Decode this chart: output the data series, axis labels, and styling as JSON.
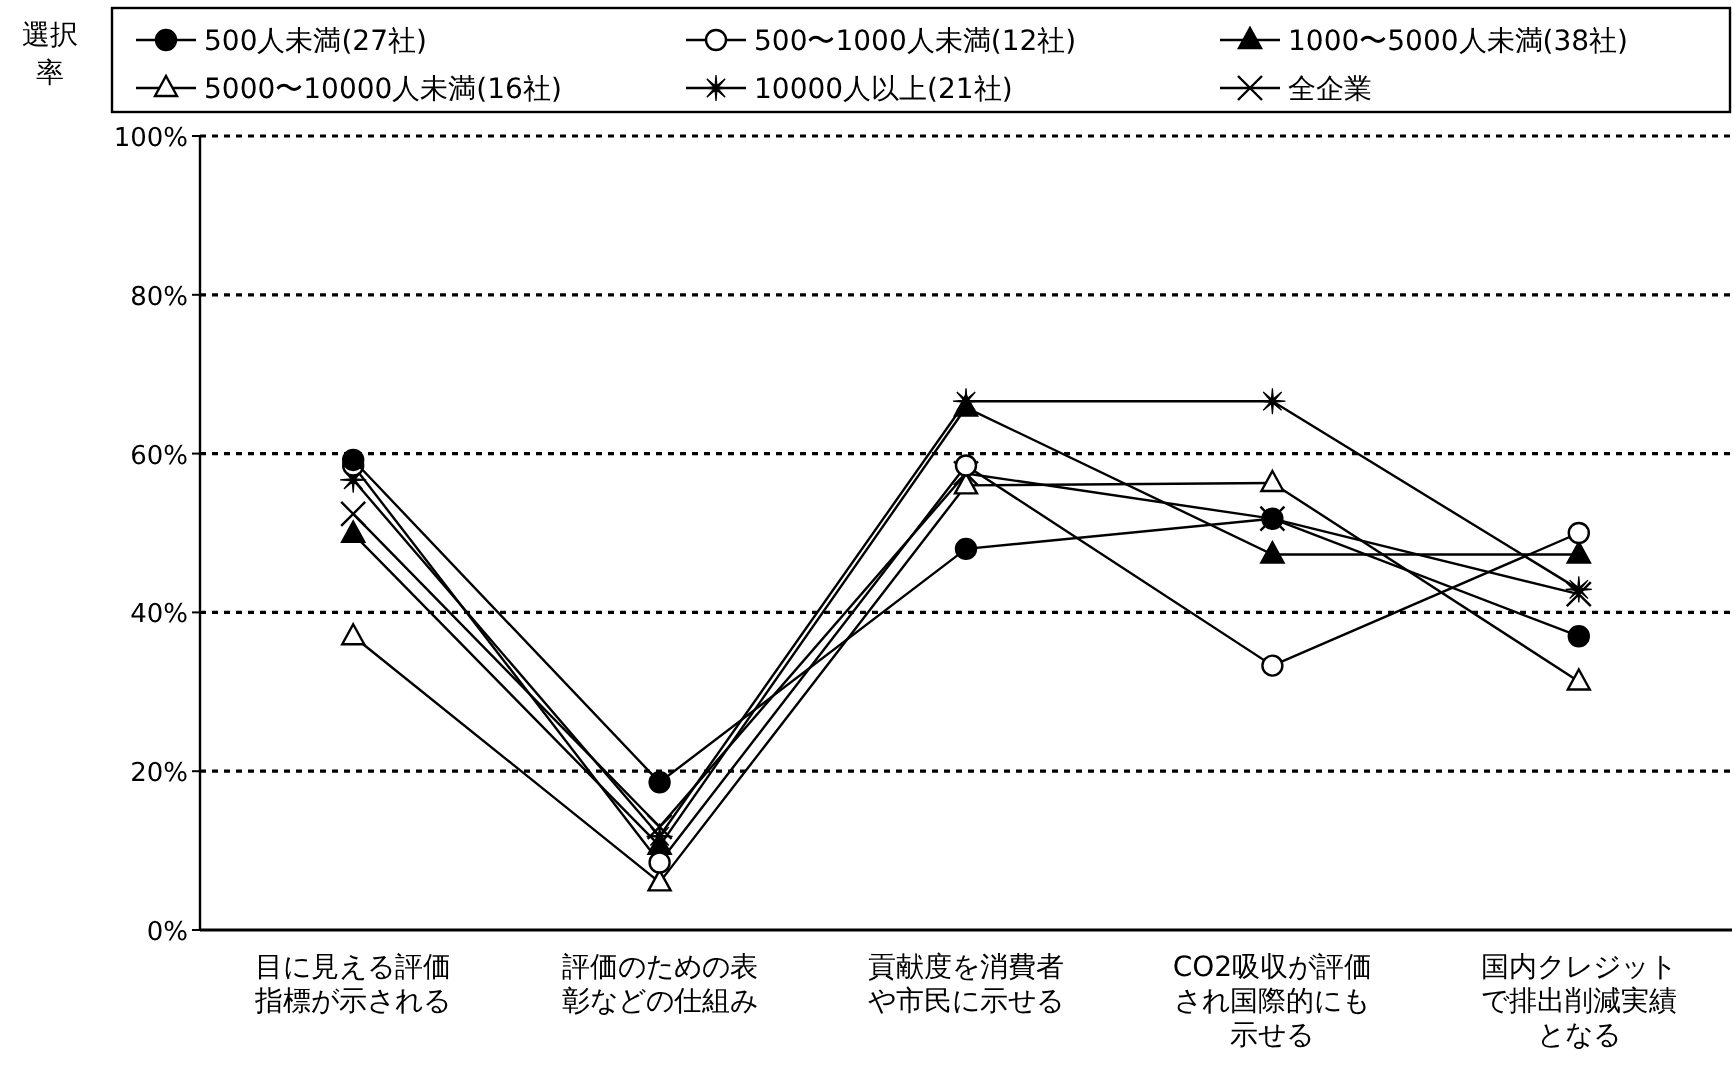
{
  "chart_data": {
    "type": "line",
    "ylabel": "選択率",
    "categories": [
      "目に見える評価指標が示される",
      "評価のための表彰などの仕組み",
      "貢献度を消費者や市民に示せる",
      "CO2吸収が評価され国際的にも示せる",
      "国内クレジットで排出削減実績となる"
    ],
    "series": [
      {
        "name": "500人未満(27社)",
        "color": "#000000",
        "marker": "circle",
        "values": [
          59.2,
          18.6,
          48,
          51.8,
          37
        ]
      },
      {
        "name": "500〜1000人未満(12社)",
        "color": "#000000",
        "marker": "circle",
        "colors": [
          "#ffffff",
          "#ffffff",
          "#ffffff",
          "#ffffff",
          "#ffffff"
        ],
        "values": [
          58.5,
          8.5,
          58.5,
          33.3,
          50
        ]
      },
      {
        "name": "1000〜5000人未満(38社)",
        "color": "#000000",
        "marker": "triangle",
        "values": [
          49.9,
          10.6,
          65.8,
          47.3,
          47.3
        ]
      },
      {
        "name": "5000〜10000人未満(16社)",
        "color": "#000000",
        "marker": "triangle",
        "colors": [
          "#ffffff",
          "#ffffff",
          "#ffffff",
          "#ffffff",
          "#ffffff"
        ],
        "values": [
          37,
          6,
          56,
          56.3,
          31.3
        ]
      },
      {
        "name": "10000人以上(21社)",
        "color": "#000000",
        "marker": "star",
        "values": [
          56.7,
          11.8,
          66.6,
          66.6,
          42.9
        ]
      },
      {
        "name": "全企業",
        "color": "#000000",
        "marker": "cross",
        "values": [
          52.4,
          13,
          57.5,
          51.8,
          42.3
        ]
      }
    ],
    "ylim": [
      0,
      100
    ],
    "yticks": [
      {
        "value": 0,
        "label": "0%"
      },
      {
        "value": 20,
        "label": "20%"
      },
      {
        "value": 40,
        "label": "40%"
      },
      {
        "value": 60,
        "label": "60%"
      },
      {
        "value": 80,
        "label": "80%"
      },
      {
        "value": 100,
        "label": "100%"
      }
    ],
    "grid": "y",
    "legend": "top",
    "line_style": "solid"
  }
}
